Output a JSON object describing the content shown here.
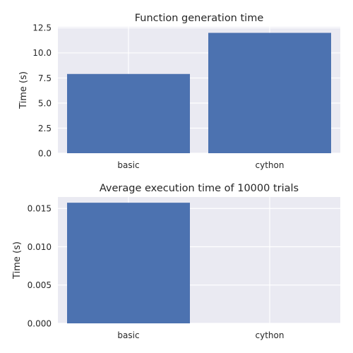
{
  "chart_data": [
    {
      "type": "bar",
      "title": "Function generation time",
      "xlabel": "",
      "ylabel": "Time (s)",
      "categories": [
        "basic",
        "cython"
      ],
      "values": [
        7.9,
        12.0
      ],
      "ylim": [
        0,
        12.6
      ],
      "yticks": [
        "0.0",
        "2.5",
        "5.0",
        "7.5",
        "10.0",
        "12.5"
      ],
      "ytick_values": [
        0,
        2.5,
        5.0,
        7.5,
        10.0,
        12.5
      ],
      "grid": true,
      "colors": {
        "bar": "#4c72b0",
        "background": "#eaeaf2",
        "grid": "#ffffff"
      }
    },
    {
      "type": "bar",
      "title": "Average execution time of 10000 trials",
      "xlabel": "",
      "ylabel": "Time (s)",
      "categories": [
        "basic",
        "cython"
      ],
      "values": [
        0.01575,
        0.0
      ],
      "ylim": [
        0,
        0.0165
      ],
      "yticks": [
        "0.000",
        "0.005",
        "0.010",
        "0.015"
      ],
      "ytick_values": [
        0,
        0.005,
        0.01,
        0.015
      ],
      "grid": true,
      "colors": {
        "bar": "#4c72b0",
        "background": "#eaeaf2",
        "grid": "#ffffff"
      }
    }
  ]
}
